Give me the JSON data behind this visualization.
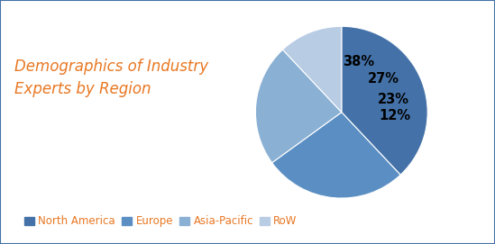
{
  "title": "Demographics of Industry\nExperts by Region",
  "title_color": "#E87722",
  "title_fontsize": 12,
  "slices": [
    38,
    27,
    23,
    12
  ],
  "labels": [
    "North America",
    "Europe",
    "Asia-Pacific",
    "RoW"
  ],
  "pct_labels": [
    "38%",
    "27%",
    "23%",
    "12%"
  ],
  "colors": [
    "#4472A8",
    "#5B8FC4",
    "#8AB0D4",
    "#B8CCE4"
  ],
  "startangle": 90,
  "background_color": "#FFFFFF",
  "legend_fontsize": 8.5,
  "legend_color": "#E87722",
  "pct_fontsize": 10.5,
  "border_color": "#4472A8"
}
